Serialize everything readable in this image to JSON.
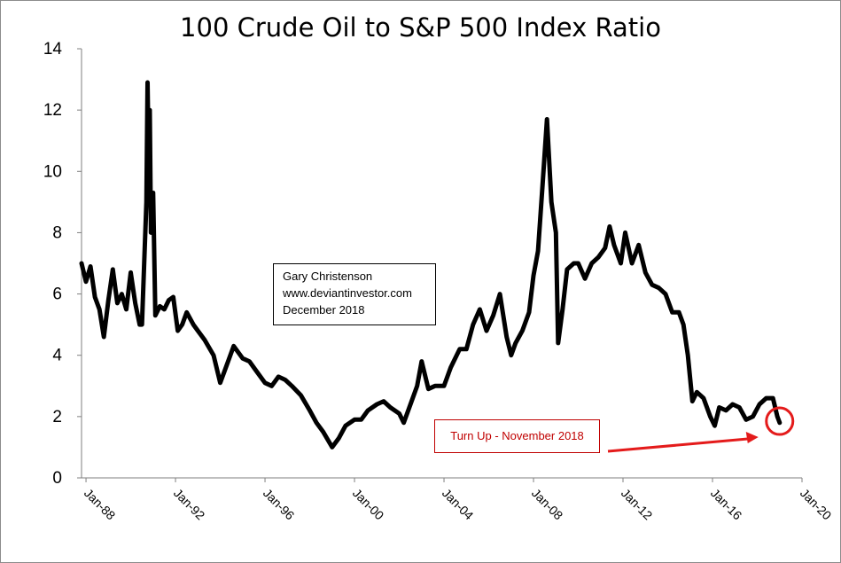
{
  "chart_data": {
    "type": "line",
    "title": "100 Crude Oil to S&P 500 Index Ratio",
    "xlabel": "",
    "ylabel": "",
    "ylim": [
      0,
      14
    ],
    "yticks": [
      0,
      2,
      4,
      6,
      8,
      10,
      12,
      14
    ],
    "xlim": [
      1987.8,
      2020.0
    ],
    "xtick_labels": [
      "Jan-88",
      "Jan-92",
      "Jan-96",
      "Jan-00",
      "Jan-04",
      "Jan-08",
      "Jan-12",
      "Jan-16",
      "Jan-20"
    ],
    "xtick_years": [
      1988,
      1992,
      1996,
      2000,
      2004,
      2008,
      2012,
      2016,
      2020
    ],
    "grid": false,
    "legend": "none",
    "series": [
      {
        "name": "100 Crude Oil to S&P 500 Index Ratio",
        "color": "#000000",
        "points": [
          [
            1987.8,
            7.0
          ],
          [
            1988.0,
            6.4
          ],
          [
            1988.2,
            6.9
          ],
          [
            1988.4,
            5.9
          ],
          [
            1988.6,
            5.5
          ],
          [
            1988.8,
            4.6
          ],
          [
            1989.0,
            5.8
          ],
          [
            1989.2,
            6.8
          ],
          [
            1989.4,
            5.7
          ],
          [
            1989.6,
            6.0
          ],
          [
            1989.8,
            5.5
          ],
          [
            1990.0,
            6.7
          ],
          [
            1990.2,
            5.7
          ],
          [
            1990.4,
            5.0
          ],
          [
            1990.5,
            5.0
          ],
          [
            1990.6,
            7.0
          ],
          [
            1990.7,
            9.0
          ],
          [
            1990.75,
            12.9
          ],
          [
            1990.8,
            10.5
          ],
          [
            1990.85,
            12.0
          ],
          [
            1990.9,
            8.0
          ],
          [
            1991.0,
            9.3
          ],
          [
            1991.1,
            5.3
          ],
          [
            1991.3,
            5.6
          ],
          [
            1991.5,
            5.5
          ],
          [
            1991.7,
            5.8
          ],
          [
            1991.9,
            5.9
          ],
          [
            1992.1,
            4.8
          ],
          [
            1992.3,
            5.0
          ],
          [
            1992.5,
            5.4
          ],
          [
            1992.8,
            5.0
          ],
          [
            1993.0,
            4.8
          ],
          [
            1993.3,
            4.5
          ],
          [
            1993.7,
            4.0
          ],
          [
            1994.0,
            3.1
          ],
          [
            1994.3,
            3.7
          ],
          [
            1994.6,
            4.3
          ],
          [
            1995.0,
            3.9
          ],
          [
            1995.3,
            3.8
          ],
          [
            1995.6,
            3.5
          ],
          [
            1996.0,
            3.1
          ],
          [
            1996.3,
            3.0
          ],
          [
            1996.6,
            3.3
          ],
          [
            1996.9,
            3.2
          ],
          [
            1997.2,
            3.0
          ],
          [
            1997.6,
            2.7
          ],
          [
            1998.0,
            2.2
          ],
          [
            1998.3,
            1.8
          ],
          [
            1998.6,
            1.5
          ],
          [
            1999.0,
            1.0
          ],
          [
            1999.3,
            1.3
          ],
          [
            1999.6,
            1.7
          ],
          [
            2000.0,
            1.9
          ],
          [
            2000.3,
            1.9
          ],
          [
            2000.6,
            2.2
          ],
          [
            2001.0,
            2.4
          ],
          [
            2001.3,
            2.5
          ],
          [
            2001.6,
            2.3
          ],
          [
            2002.0,
            2.1
          ],
          [
            2002.2,
            1.8
          ],
          [
            2002.5,
            2.4
          ],
          [
            2002.8,
            3.0
          ],
          [
            2003.0,
            3.8
          ],
          [
            2003.3,
            2.9
          ],
          [
            2003.6,
            3.0
          ],
          [
            2004.0,
            3.0
          ],
          [
            2004.3,
            3.6
          ],
          [
            2004.7,
            4.2
          ],
          [
            2005.0,
            4.2
          ],
          [
            2005.3,
            5.0
          ],
          [
            2005.6,
            5.5
          ],
          [
            2005.9,
            4.8
          ],
          [
            2006.2,
            5.3
          ],
          [
            2006.5,
            6.0
          ],
          [
            2006.8,
            4.6
          ],
          [
            2007.0,
            4.0
          ],
          [
            2007.2,
            4.4
          ],
          [
            2007.5,
            4.8
          ],
          [
            2007.8,
            5.4
          ],
          [
            2008.0,
            6.6
          ],
          [
            2008.2,
            7.4
          ],
          [
            2008.4,
            9.5
          ],
          [
            2008.6,
            11.7
          ],
          [
            2008.8,
            9.0
          ],
          [
            2009.0,
            8.0
          ],
          [
            2009.1,
            4.4
          ],
          [
            2009.3,
            5.5
          ],
          [
            2009.5,
            6.8
          ],
          [
            2009.8,
            7.0
          ],
          [
            2010.0,
            7.0
          ],
          [
            2010.3,
            6.5
          ],
          [
            2010.6,
            7.0
          ],
          [
            2010.9,
            7.2
          ],
          [
            2011.2,
            7.5
          ],
          [
            2011.4,
            8.2
          ],
          [
            2011.6,
            7.6
          ],
          [
            2011.9,
            7.0
          ],
          [
            2012.1,
            8.0
          ],
          [
            2012.4,
            7.0
          ],
          [
            2012.7,
            7.6
          ],
          [
            2013.0,
            6.7
          ],
          [
            2013.3,
            6.3
          ],
          [
            2013.6,
            6.2
          ],
          [
            2013.9,
            6.0
          ],
          [
            2014.2,
            5.4
          ],
          [
            2014.5,
            5.4
          ],
          [
            2014.7,
            5.0
          ],
          [
            2014.9,
            4.0
          ],
          [
            2015.1,
            2.5
          ],
          [
            2015.3,
            2.8
          ],
          [
            2015.6,
            2.6
          ],
          [
            2015.9,
            2.0
          ],
          [
            2016.1,
            1.7
          ],
          [
            2016.3,
            2.3
          ],
          [
            2016.6,
            2.2
          ],
          [
            2016.9,
            2.4
          ],
          [
            2017.2,
            2.3
          ],
          [
            2017.5,
            1.9
          ],
          [
            2017.8,
            2.0
          ],
          [
            2018.1,
            2.4
          ],
          [
            2018.4,
            2.6
          ],
          [
            2018.7,
            2.6
          ],
          [
            2018.9,
            2.0
          ],
          [
            2019.0,
            1.8
          ]
        ]
      }
    ],
    "annotations": {
      "credit_lines": [
        "Gary Christenson",
        "www.deviantinvestor.com",
        "December 2018"
      ],
      "turn_up_label": "Turn Up - November 2018",
      "marker_color": "#e41b1b",
      "marker_year": 2019.0,
      "marker_value": 1.85
    }
  }
}
